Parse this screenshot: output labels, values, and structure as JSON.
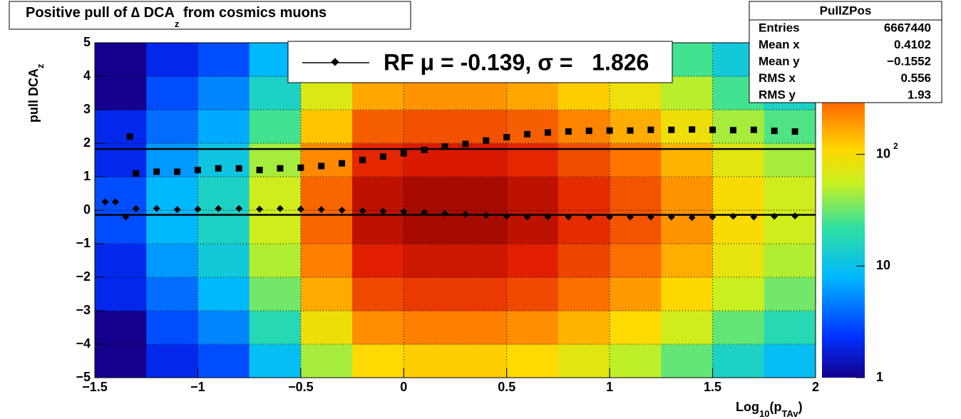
{
  "chart_data": {
    "type": "heatmap",
    "title_parts": [
      "Positive pull of ∆ DCA",
      "z",
      " from cosmics muons"
    ],
    "x_label_parts": [
      "Log",
      "10",
      "(p",
      "TAv",
      ")"
    ],
    "y_label_parts": [
      "pull DCA",
      "z"
    ],
    "xlim": [
      -1.5,
      2
    ],
    "ylim": [
      -5,
      5
    ],
    "xticks": [
      {
        "value": -1.5,
        "label": "−1.5"
      },
      {
        "value": -1,
        "label": "−1"
      },
      {
        "value": -0.5,
        "label": "−0.5"
      },
      0,
      0.5,
      1,
      1.5,
      2
    ],
    "yticks": [
      {
        "value": -5,
        "label": "−5"
      },
      {
        "value": -4,
        "label": "−4"
      },
      {
        "value": -3,
        "label": "−3"
      },
      {
        "value": -2,
        "label": "−2"
      },
      {
        "value": -1,
        "label": "−1"
      },
      0,
      1,
      2,
      3,
      4,
      5
    ],
    "grid": true,
    "z_log": true,
    "zlim": [
      1,
      1000
    ],
    "zticks": [
      1,
      10,
      {
        "value": 100,
        "label": "10",
        "sup": "2"
      }
    ],
    "xbins": [
      -1.5,
      -1.25,
      -1,
      -0.75,
      -0.5,
      -0.25,
      0,
      0.25,
      0.5,
      0.75,
      1,
      1.25,
      1.5,
      1.75,
      2
    ],
    "ybins": [
      -5,
      -4,
      -3,
      -2,
      -1,
      0,
      1,
      2,
      3,
      4,
      5
    ],
    "z": [
      [
        1,
        2,
        3,
        9,
        45,
        105,
        120,
        120,
        105,
        75,
        52,
        30,
        15,
        9
      ],
      [
        1,
        3,
        5,
        18,
        90,
        210,
        240,
        240,
        210,
        150,
        105,
        60,
        30,
        18
      ],
      [
        2,
        4,
        8,
        33,
        165,
        385,
        440,
        440,
        385,
        275,
        190,
        110,
        55,
        33
      ],
      [
        2,
        6,
        12,
        48,
        240,
        560,
        640,
        640,
        560,
        400,
        280,
        160,
        80,
        48
      ],
      [
        3,
        8,
        15,
        60,
        300,
        700,
        800,
        800,
        700,
        500,
        350,
        200,
        100,
        60
      ],
      [
        3,
        8,
        15,
        60,
        300,
        700,
        800,
        800,
        700,
        500,
        350,
        200,
        100,
        60
      ],
      [
        2,
        6,
        11,
        45,
        220,
        520,
        600,
        600,
        520,
        370,
        260,
        150,
        75,
        45
      ],
      [
        2,
        4,
        7,
        25,
        130,
        320,
        360,
        360,
        320,
        230,
        160,
        90,
        45,
        27
      ],
      [
        1,
        3,
        5,
        15,
        70,
        170,
        200,
        200,
        170,
        120,
        85,
        50,
        25,
        15
      ],
      [
        1,
        2,
        3,
        8,
        30,
        70,
        90,
        95,
        85,
        60,
        40,
        25,
        12,
        8
      ]
    ],
    "series": [
      {
        "marker": "square",
        "color": "#000000",
        "x": [
          -1.3,
          -1.2,
          -1.1,
          -1.0,
          -0.9,
          -0.8,
          -0.7,
          -0.6,
          -0.5,
          -0.4,
          -0.3,
          -0.2,
          -0.1,
          0,
          0.1,
          0.2,
          0.3,
          0.4,
          0.5,
          0.6,
          0.7,
          0.8,
          0.9,
          1.0,
          1.1,
          1.2,
          1.3,
          1.4,
          1.5,
          1.6,
          1.7,
          1.8,
          1.9
        ],
        "values": [
          1.1,
          1.15,
          1.15,
          1.2,
          1.25,
          1.25,
          1.2,
          1.25,
          1.27,
          1.32,
          1.4,
          1.5,
          1.6,
          1.7,
          1.8,
          1.9,
          1.98,
          2.08,
          2.18,
          2.27,
          2.32,
          2.35,
          2.37,
          2.38,
          2.38,
          2.4,
          2.4,
          2.41,
          2.4,
          2.39,
          2.4,
          2.37,
          2.35
        ]
      },
      {
        "marker": "diamond",
        "color": "#000000",
        "x": [
          -1.3,
          -1.2,
          -1.1,
          -1.0,
          -0.9,
          -0.8,
          -0.7,
          -0.6,
          -0.5,
          -0.4,
          -0.3,
          -0.2,
          -0.1,
          0,
          0.1,
          0.2,
          0.3,
          0.4,
          0.5,
          0.6,
          0.7,
          0.8,
          0.9,
          1.0,
          1.1,
          1.2,
          1.3,
          1.4,
          1.5,
          1.6,
          1.7,
          1.8,
          1.9
        ],
        "values": [
          0.05,
          0.05,
          0.02,
          0.03,
          0.05,
          0.05,
          0.03,
          0.05,
          0.03,
          0.02,
          0,
          -0.02,
          -0.03,
          -0.04,
          -0.07,
          -0.1,
          -0.12,
          -0.15,
          -0.18,
          -0.2,
          -0.2,
          -0.2,
          -0.2,
          -0.2,
          -0.2,
          -0.2,
          -0.2,
          -0.22,
          -0.2,
          -0.18,
          -0.2,
          -0.18,
          -0.17
        ]
      },
      {
        "marker": "square",
        "color": "#000000",
        "x": [
          -1.33
        ],
        "values": [
          2.2
        ]
      },
      {
        "marker": "diamond",
        "color": "#000000",
        "x": [
          -1.45,
          -1.4,
          -1.35
        ],
        "values": [
          0.25,
          0.25,
          -0.2
        ]
      }
    ],
    "fit_lines": [
      1.826,
      -0.139
    ],
    "legend": {
      "text": "RF μ = -0.139, σ =   1.826"
    },
    "stats": {
      "title": "PullZPos",
      "rows": [
        [
          "Entries",
          "6667440"
        ],
        [
          "Mean x",
          "0.4102"
        ],
        [
          "Mean y",
          "−0.1552"
        ],
        [
          "RMS x",
          "0.556"
        ],
        [
          "RMS y",
          "1.93"
        ]
      ]
    }
  }
}
